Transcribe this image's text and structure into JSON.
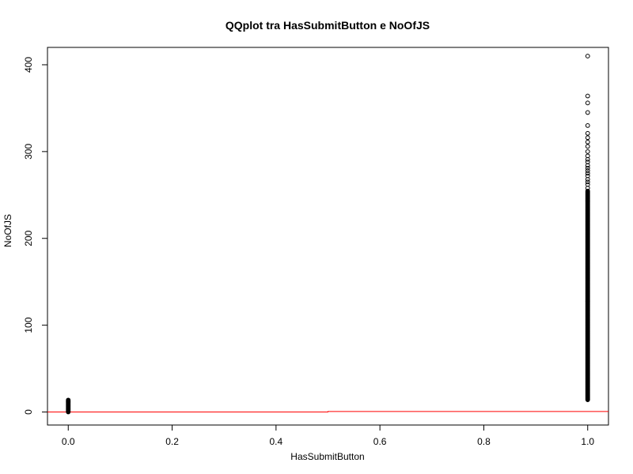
{
  "chart_data": {
    "type": "scatter",
    "title": "QQplot tra HasSubmitButton e NoOfJS",
    "xlabel": "HasSubmitButton",
    "ylabel": "NoOfJS",
    "xlim": [
      -0.04,
      1.04
    ],
    "ylim": [
      -15,
      420
    ],
    "x_ticks": [
      "0.0",
      "0.2",
      "0.4",
      "0.6",
      "0.8",
      "1.0"
    ],
    "y_ticks": [
      "0",
      "100",
      "200",
      "300",
      "400"
    ],
    "grid": false,
    "marker": "open-circle",
    "series": [
      {
        "x": 0.0,
        "y_dense_range": [
          0,
          14
        ]
      },
      {
        "x": 1.0,
        "y_dense_range": [
          14,
          255
        ],
        "y_outliers": [
          258,
          262,
          265,
          268,
          272,
          275,
          278,
          281,
          284,
          288,
          291,
          295,
          300,
          306,
          311,
          316,
          321,
          330,
          345,
          356,
          364,
          410
        ]
      }
    ],
    "reference_line": {
      "x": [
        0,
        0.5,
        0.5,
        1.0
      ],
      "y": [
        0,
        0,
        0.6,
        0.6
      ],
      "color": "#ff0000"
    }
  }
}
